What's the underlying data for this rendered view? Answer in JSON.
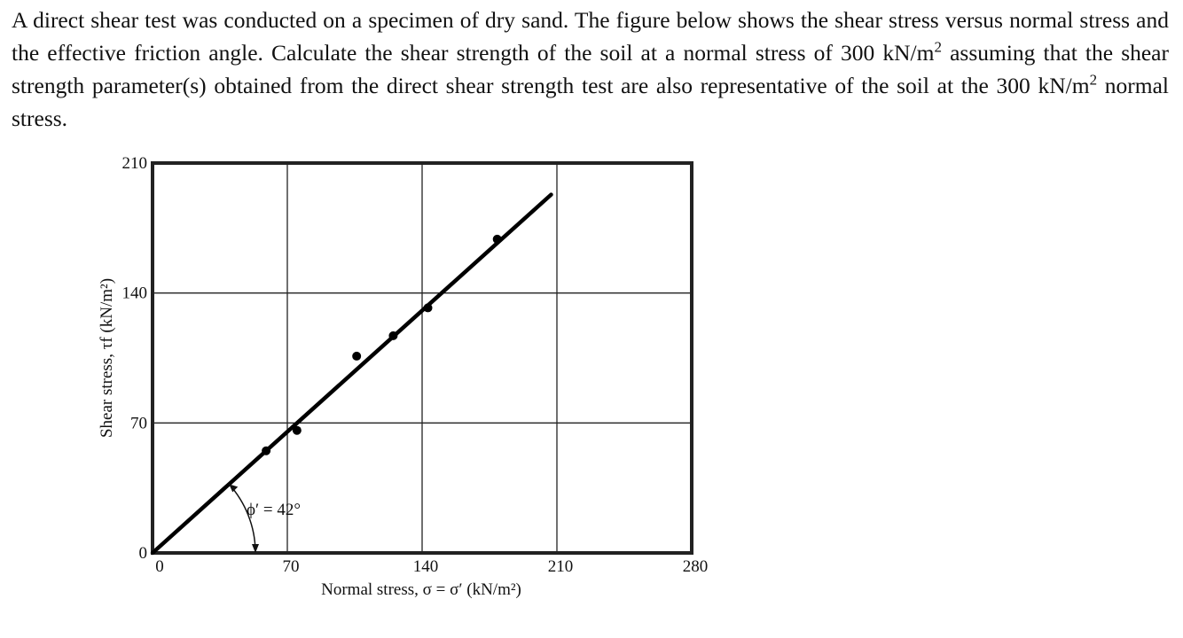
{
  "problem": {
    "part1": "A direct shear test was conducted on a specimen of dry sand.  The figure below shows the shear stress versus normal stress and the effective friction angle. Calculate the shear strength of the soil at a normal stress of 300 kN/m",
    "exp1": "2",
    "part2": " assuming that the shear strength parameter(s) obtained from the direct shear strength test are also representative of the soil at the 300 kN/m",
    "exp2": "2",
    "part3": " normal stress."
  },
  "chart_data": {
    "type": "scatter",
    "title": "",
    "xlabel": "Normal stress, σ = σ′ (kN/m²)",
    "ylabel": "Shear stress, τf (kN/m²)",
    "xlim": [
      0,
      280
    ],
    "ylim": [
      0,
      210
    ],
    "x_ticks": [
      "0",
      "70",
      "140",
      "210",
      "280"
    ],
    "y_ticks": [
      "0",
      "70",
      "140",
      "210"
    ],
    "grid": true,
    "points": [
      {
        "x": 59,
        "y": 55
      },
      {
        "x": 75,
        "y": 66
      },
      {
        "x": 106,
        "y": 106
      },
      {
        "x": 125,
        "y": 117
      },
      {
        "x": 143,
        "y": 132
      },
      {
        "x": 179,
        "y": 169
      }
    ],
    "fit_line": {
      "x": [
        0,
        207
      ],
      "y": [
        0,
        193
      ]
    },
    "annotation": "ϕ′ = 42°"
  }
}
